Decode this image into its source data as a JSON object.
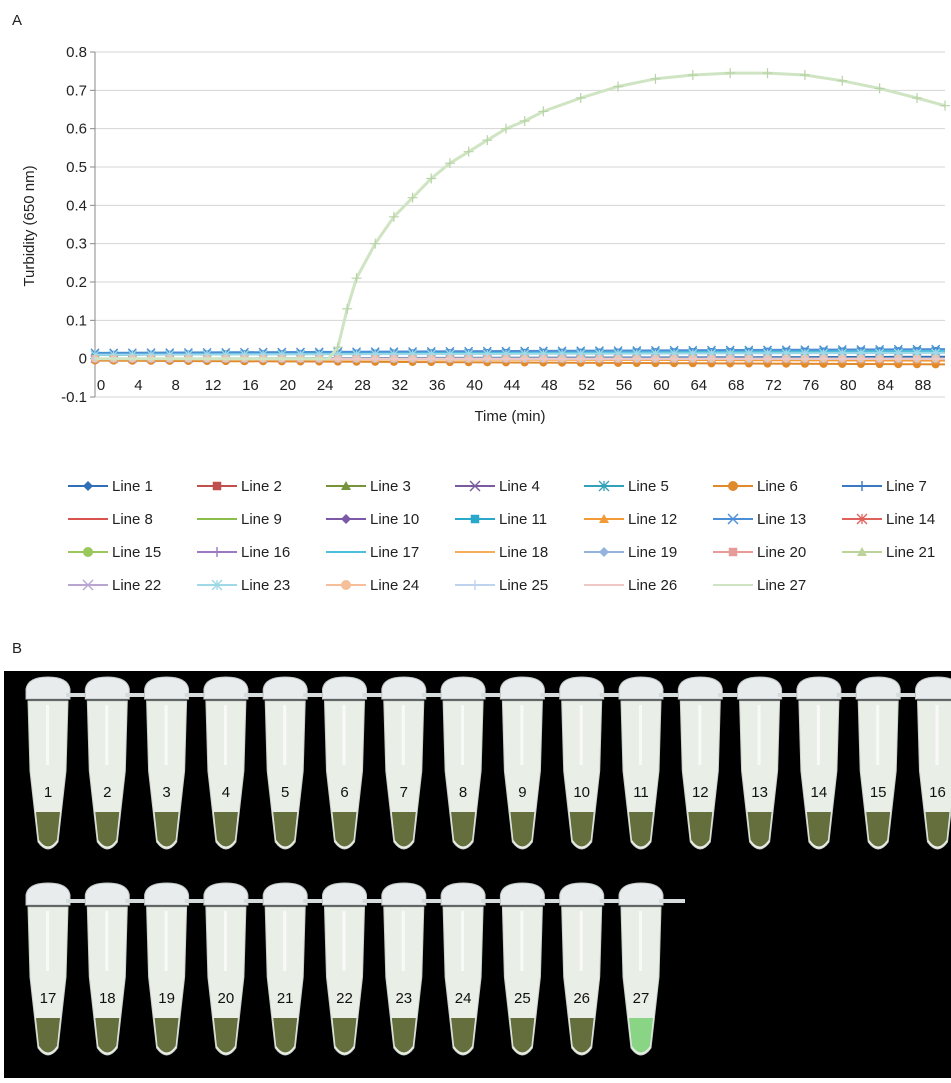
{
  "panels": {
    "a_label": "A",
    "b_label": "B"
  },
  "chart_data": {
    "type": "line",
    "title": "",
    "xlabel": "Time (min)",
    "ylabel": "Turbidity (650 nm)",
    "ylim": [
      -0.1,
      0.8
    ],
    "yticks": [
      "0.8",
      "0.7",
      "0.6",
      "0.5",
      "0.4",
      "0.3",
      "0.2",
      "0.1",
      "0",
      "-0.1"
    ],
    "xlim": [
      0,
      91
    ],
    "xticks": [
      "0",
      "4",
      "8",
      "12",
      "16",
      "20",
      "24",
      "28",
      "32",
      "36",
      "40",
      "44",
      "48",
      "52",
      "56",
      "60",
      "64",
      "68",
      "72",
      "76",
      "80",
      "84",
      "88"
    ],
    "grid": true,
    "legend_position": "bottom",
    "series": [
      {
        "name": "Line 1",
        "color": "#2e6fb6",
        "marker": "diamond",
        "x": [
          0,
          91
        ],
        "y": [
          0.0,
          0.005
        ]
      },
      {
        "name": "Line 2",
        "color": "#c0504d",
        "marker": "square",
        "x": [
          0,
          91
        ],
        "y": [
          0.0,
          0.0
        ]
      },
      {
        "name": "Line 3",
        "color": "#77933c",
        "marker": "triangle",
        "x": [
          0,
          91
        ],
        "y": [
          0.0,
          0.0
        ]
      },
      {
        "name": "Line 4",
        "color": "#7a5c9e",
        "marker": "x",
        "x": [
          0,
          91
        ],
        "y": [
          0.0,
          0.0
        ]
      },
      {
        "name": "Line 5",
        "color": "#31a2b8",
        "marker": "star",
        "x": [
          0,
          91
        ],
        "y": [
          0.01,
          0.02
        ]
      },
      {
        "name": "Line 6",
        "color": "#e08a2c",
        "marker": "circle",
        "x": [
          0,
          91
        ],
        "y": [
          -0.005,
          -0.015
        ]
      },
      {
        "name": "Line 7",
        "color": "#3a78c2",
        "marker": "plus",
        "x": [
          0,
          91
        ],
        "y": [
          0.01,
          0.02
        ]
      },
      {
        "name": "Line 8",
        "color": "#d9534f",
        "marker": "none",
        "x": [
          0,
          91
        ],
        "y": [
          0.0,
          0.0
        ]
      },
      {
        "name": "Line 9",
        "color": "#8bbd4a",
        "marker": "none",
        "x": [
          0,
          91
        ],
        "y": [
          0.0,
          0.0
        ]
      },
      {
        "name": "Line 10",
        "color": "#7c58a8",
        "marker": "diamond",
        "x": [
          0,
          91
        ],
        "y": [
          0.0,
          0.0
        ]
      },
      {
        "name": "Line 11",
        "color": "#2aa8c9",
        "marker": "square",
        "x": [
          0,
          91
        ],
        "y": [
          0.01,
          0.02
        ]
      },
      {
        "name": "Line 12",
        "color": "#f29a38",
        "marker": "triangle",
        "x": [
          0,
          91
        ],
        "y": [
          0.0,
          -0.005
        ]
      },
      {
        "name": "Line 13",
        "color": "#4d8fd6",
        "marker": "x",
        "x": [
          0,
          91
        ],
        "y": [
          0.015,
          0.025
        ]
      },
      {
        "name": "Line 14",
        "color": "#e0605a",
        "marker": "star",
        "x": [
          0,
          91
        ],
        "y": [
          0.0,
          0.0
        ]
      },
      {
        "name": "Line 15",
        "color": "#9bc85a",
        "marker": "circle",
        "x": [
          0,
          91
        ],
        "y": [
          0.0,
          0.0
        ]
      },
      {
        "name": "Line 16",
        "color": "#9a79c0",
        "marker": "plus",
        "x": [
          0,
          91
        ],
        "y": [
          0.0,
          0.0
        ]
      },
      {
        "name": "Line 17",
        "color": "#4fc0dc",
        "marker": "none",
        "x": [
          0,
          91
        ],
        "y": [
          0.01,
          0.02
        ]
      },
      {
        "name": "Line 18",
        "color": "#f6ad5a",
        "marker": "none",
        "x": [
          0,
          91
        ],
        "y": [
          0.0,
          0.0
        ]
      },
      {
        "name": "Line 19",
        "color": "#94b4df",
        "marker": "diamond",
        "x": [
          0,
          91
        ],
        "y": [
          0.0,
          0.0
        ]
      },
      {
        "name": "Line 20",
        "color": "#e89a98",
        "marker": "square",
        "x": [
          0,
          91
        ],
        "y": [
          0.0,
          0.0
        ]
      },
      {
        "name": "Line 21",
        "color": "#bcd49a",
        "marker": "triangle",
        "x": [
          0,
          91
        ],
        "y": [
          0.0,
          0.0
        ]
      },
      {
        "name": "Line 22",
        "color": "#b8a5d2",
        "marker": "x",
        "x": [
          0,
          91
        ],
        "y": [
          0.0,
          0.0
        ]
      },
      {
        "name": "Line 23",
        "color": "#9fd8e6",
        "marker": "star",
        "x": [
          0,
          91
        ],
        "y": [
          0.01,
          0.015
        ]
      },
      {
        "name": "Line 24",
        "color": "#f6bf99",
        "marker": "circle",
        "x": [
          0,
          91
        ],
        "y": [
          0.0,
          0.0
        ]
      },
      {
        "name": "Line 25",
        "color": "#c0d3ee",
        "marker": "plus",
        "x": [
          0,
          91
        ],
        "y": [
          0.0,
          0.0
        ]
      },
      {
        "name": "Line 26",
        "color": "#f0c8c6",
        "marker": "none",
        "x": [
          0,
          91
        ],
        "y": [
          0.0,
          0.0
        ]
      },
      {
        "name": "Line 27",
        "color": "#cfe4c2",
        "marker": "none",
        "x": [
          0,
          25,
          26,
          27,
          28,
          30,
          32,
          34,
          36,
          38,
          40,
          42,
          44,
          46,
          48,
          52,
          56,
          60,
          64,
          68,
          72,
          76,
          80,
          84,
          88,
          91
        ],
        "y": [
          0.0,
          0.0,
          0.03,
          0.13,
          0.21,
          0.3,
          0.37,
          0.42,
          0.47,
          0.51,
          0.54,
          0.57,
          0.6,
          0.62,
          0.645,
          0.68,
          0.71,
          0.73,
          0.74,
          0.745,
          0.745,
          0.74,
          0.725,
          0.705,
          0.68,
          0.66
        ]
      }
    ]
  },
  "photo": {
    "tubes_row1": [
      "1",
      "2",
      "3",
      "4",
      "5",
      "6",
      "7",
      "8",
      "9",
      "10",
      "11",
      "12",
      "13",
      "14",
      "15",
      "16"
    ],
    "tubes_row2": [
      "17",
      "18",
      "19",
      "20",
      "21",
      "22",
      "23",
      "24",
      "25",
      "26",
      "27"
    ],
    "normal_tip_color": "#55602a",
    "positive_tip_color": "#7fd07a",
    "positive_tube": "27"
  }
}
